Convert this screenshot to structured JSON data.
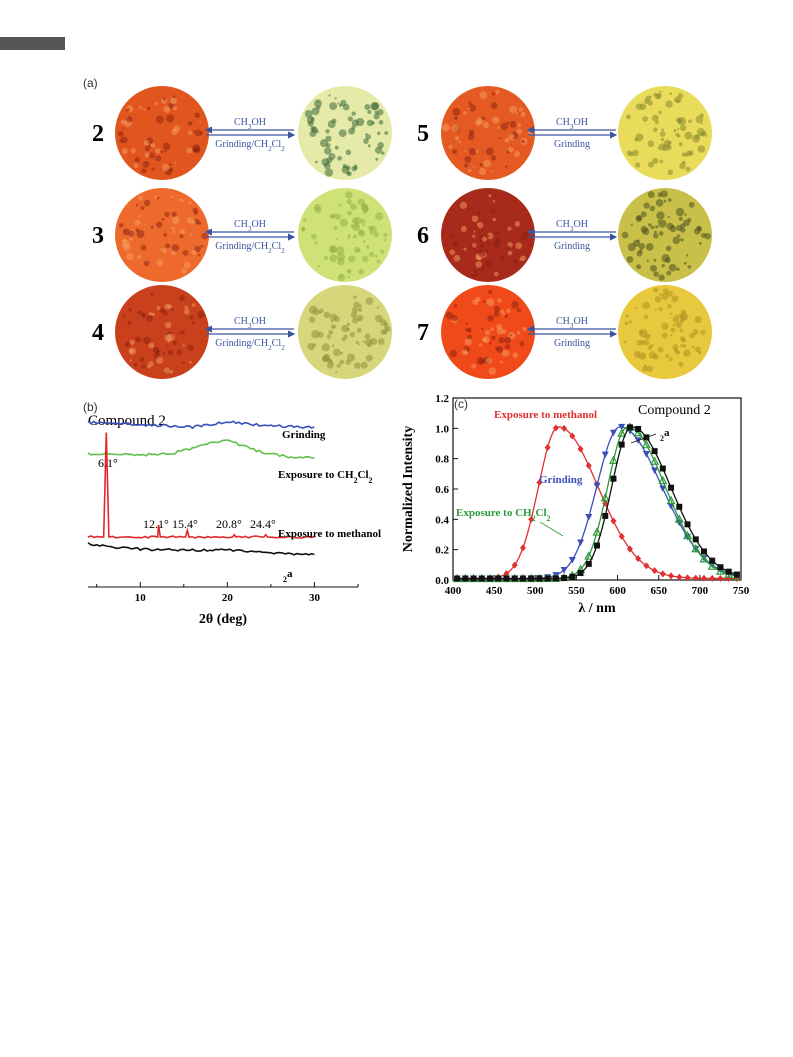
{
  "panels": {
    "a": "(a)",
    "b": "(b)",
    "c": "(c)"
  },
  "panel_a": {
    "compounds": [
      {
        "id": "2",
        "reagent": "CH3OH",
        "process": "Grinding/CH2Cl2",
        "from": "#e0561e",
        "to": "#e6eaa8",
        "speck": "#3a6a3a"
      },
      {
        "id": "3",
        "reagent": "CH3OH",
        "process": "Grinding/CH2Cl2",
        "from": "#ee6a2c",
        "to": "#cfe278",
        "speck": "#98b040"
      },
      {
        "id": "4",
        "reagent": "CH3OH",
        "process": "Grinding/CH2Cl2",
        "from": "#c8401c",
        "to": "#d8d67a",
        "speck": "#909040"
      },
      {
        "id": "5",
        "reagent": "CH3OH",
        "process": "Grinding",
        "from": "#e45a22",
        "to": "#e8dc5a",
        "speck": "#8a8a30"
      },
      {
        "id": "6",
        "reagent": "CH3OH",
        "process": "Grinding",
        "from": "#a82a1a",
        "to": "#c8c048",
        "speck": "#4a5020"
      },
      {
        "id": "7",
        "reagent": "CH3OH",
        "process": "Grinding",
        "from": "#f04a1a",
        "to": "#e8c83c",
        "speck": "#b09020"
      }
    ]
  },
  "chart_data": [
    {
      "type": "line",
      "panel": "b",
      "title": "Compound 2",
      "xlabel": "2θ (deg)",
      "ylabel": "",
      "xlim": [
        4,
        35
      ],
      "xticks": [
        10,
        20,
        30
      ],
      "series": [
        {
          "name": "Grinding",
          "color": "#3b4fb8",
          "offset": 3,
          "x": [
            4,
            6,
            8,
            10,
            12,
            14,
            16,
            18,
            20,
            22,
            24,
            26,
            28,
            30
          ],
          "y": [
            0.15,
            0.14,
            0.12,
            0.08,
            0.05,
            0.02,
            0.0,
            0.08,
            0.18,
            0.12,
            0.06,
            0.03,
            0.0,
            0.0
          ]
        },
        {
          "name": "Exposure to CH2Cl2",
          "color": "#5ec04a",
          "offset": 2,
          "x": [
            4,
            6,
            8,
            10,
            12,
            14,
            16,
            18,
            20,
            22,
            24,
            26,
            28,
            30
          ],
          "y": [
            0.1,
            0.1,
            0.1,
            0.08,
            0.08,
            0.15,
            0.3,
            0.48,
            0.55,
            0.35,
            0.15,
            0.05,
            -0.02,
            -0.04
          ]
        },
        {
          "name": "Exposure to methanol",
          "color": "#e02828",
          "offset": 1,
          "x": [
            4,
            5.8,
            6.1,
            6.4,
            8,
            12,
            12.1,
            12.3,
            15.2,
            15.4,
            15.6,
            20.6,
            20.8,
            21,
            24.2,
            24.4,
            24.6,
            30
          ],
          "y": [
            0,
            0,
            1.9,
            0,
            0,
            0,
            0.22,
            0,
            0,
            0.12,
            0,
            0,
            0.04,
            0,
            0,
            0.04,
            0,
            0
          ]
        },
        {
          "name": "2a",
          "color": "#111111",
          "offset": 0,
          "x": [
            4,
            6,
            8,
            10,
            12,
            14,
            16,
            18,
            20,
            22,
            24,
            26,
            28,
            30
          ],
          "y": [
            0.3,
            0.22,
            0.17,
            0.13,
            0.11,
            0.1,
            0.1,
            0.1,
            0.1,
            0.07,
            0.03,
            0.0,
            -0.03,
            -0.05
          ]
        }
      ],
      "peak_labels": [
        "6.1°",
        "12.1°",
        "15.4°",
        "20.8°",
        "24.4°"
      ]
    },
    {
      "type": "line",
      "panel": "c",
      "title": "Compound 2",
      "xlabel": "λ / nm",
      "ylabel": "Normalized Intensity",
      "xlim": [
        400,
        750
      ],
      "ylim": [
        0,
        1.2
      ],
      "xticks": [
        400,
        450,
        500,
        550,
        600,
        650,
        700,
        750
      ],
      "yticks": [
        0.0,
        0.2,
        0.4,
        0.6,
        0.8,
        1.0,
        1.2
      ],
      "series": [
        {
          "name": "Exposure to methanol",
          "color": "#e03030",
          "marker": "diamond",
          "peak": 528,
          "sl": 34,
          "sr": 68
        },
        {
          "name": "Grinding",
          "color": "#3b4fb8",
          "marker": "triangle-down",
          "peak": 603,
          "sl": 40,
          "sr": 72
        },
        {
          "name": "Exposure to CH2Cl2",
          "color": "#2a9a3a",
          "marker": "triangle-up",
          "peak": 612,
          "sl": 34,
          "sr": 65
        },
        {
          "name": "2a",
          "color": "#111111",
          "marker": "square",
          "peak": 617,
          "sl": 34,
          "sr": 67
        }
      ]
    }
  ]
}
